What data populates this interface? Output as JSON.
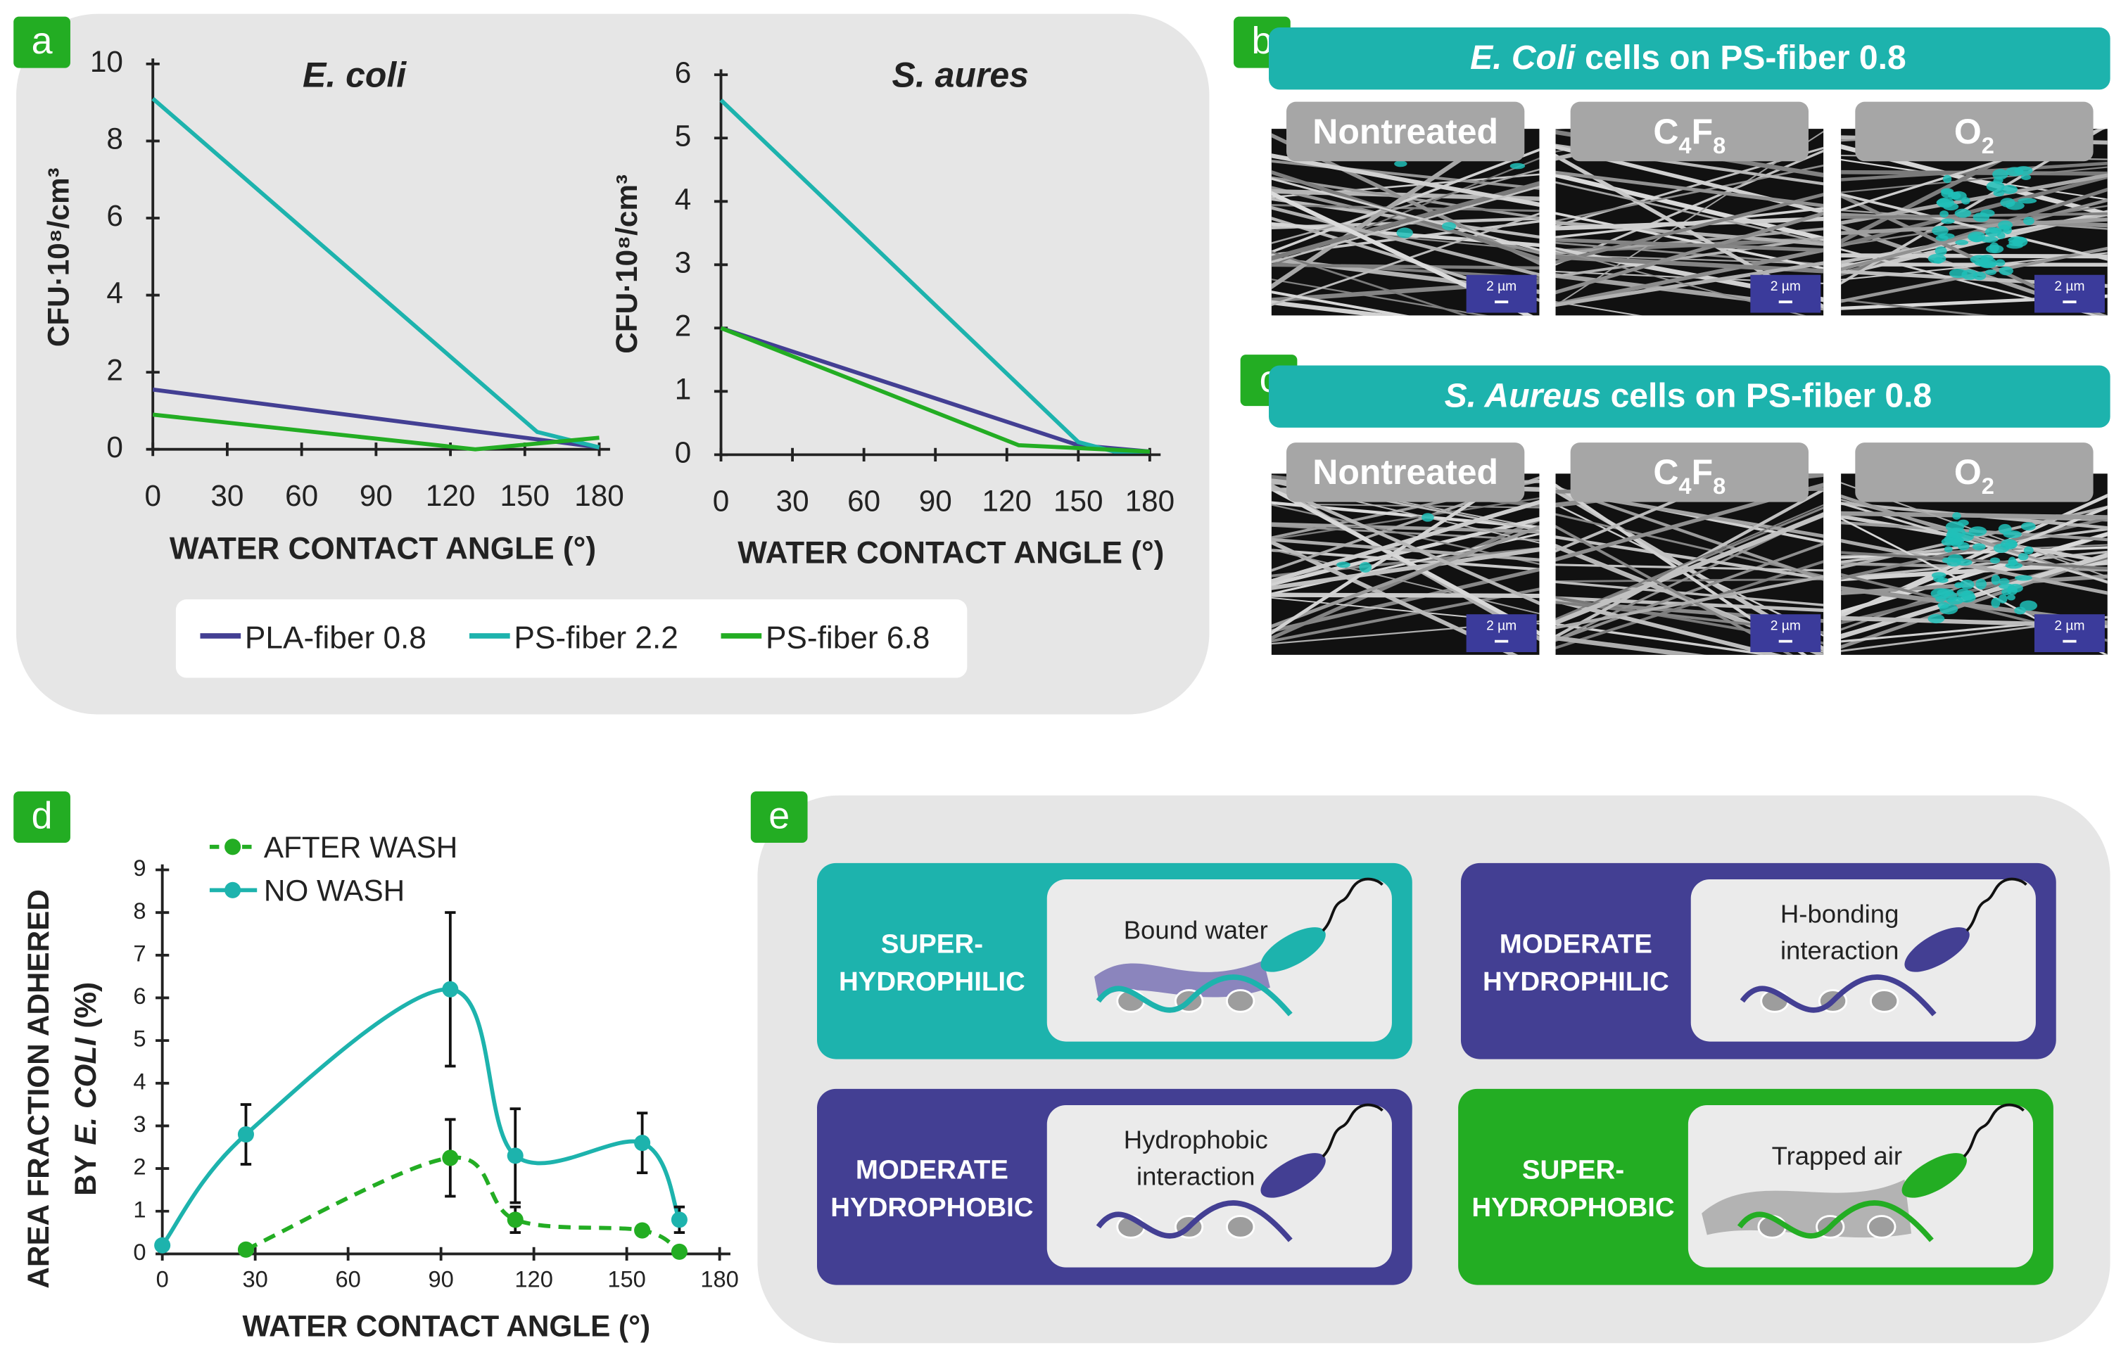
{
  "chart_data": [
    {
      "type": "line",
      "title": "E. coli",
      "xlabel": "WATER CONTACT ANGLE (°)",
      "ylabel": "CFU·10⁸/cm³",
      "xlim": [
        0,
        180
      ],
      "xticks": [
        0,
        30,
        60,
        90,
        120,
        150,
        180
      ],
      "ylim": [
        0,
        10
      ],
      "yticks": [
        0,
        2,
        4,
        6,
        8,
        10
      ],
      "series": [
        {
          "name": "PLA-fiber 0.8",
          "color": "#433f93",
          "x": [
            0,
            180
          ],
          "values": [
            1.55,
            0.05
          ]
        },
        {
          "name": "PS-fiber 2.2",
          "color": "#1db3ad",
          "x": [
            0,
            155,
            180
          ],
          "values": [
            9.1,
            0.45,
            0.05
          ]
        },
        {
          "name": "PS-fiber 6.8",
          "color": "#23ad23",
          "x": [
            0,
            130,
            180
          ],
          "values": [
            0.9,
            0,
            0.3
          ]
        }
      ]
    },
    {
      "type": "line",
      "title": "S. aures",
      "xlabel": "WATER CONTACT ANGLE (°)",
      "ylabel": "CFU·10⁸/cm³",
      "xlim": [
        0,
        180
      ],
      "xticks": [
        0,
        30,
        60,
        90,
        120,
        150,
        180
      ],
      "ylim": [
        0,
        6
      ],
      "yticks": [
        0,
        1,
        2,
        3,
        4,
        5,
        6
      ],
      "series": [
        {
          "color": "#433f93",
          "x": [
            0,
            150,
            180
          ],
          "values": [
            2,
            0.15,
            0.05
          ]
        },
        {
          "color": "#1db3ad",
          "x": [
            0,
            150,
            165,
            180
          ],
          "values": [
            5.6,
            0.2,
            0.05,
            0.05
          ]
        },
        {
          "color": "#23ad23",
          "x": [
            0,
            125,
            180
          ],
          "values": [
            2,
            0.15,
            0.05
          ]
        }
      ]
    },
    {
      "type": "smooth-line",
      "xlabel": "WATER CONTACT ANGLE (°)",
      "ylabel": {
        "line1": "AREA FRACTION ADHERED",
        "line2_prefix": "BY",
        "line2_italic": "E. COLI",
        "line2_suffix": "(%)"
      },
      "xlim": [
        0,
        180
      ],
      "xticks": [
        0,
        30,
        60,
        90,
        120,
        150,
        180
      ],
      "ylim": [
        0,
        9
      ],
      "yticks": [
        0,
        1,
        2,
        3,
        4,
        5,
        6,
        7,
        8,
        9
      ],
      "series": [
        {
          "name": "AFTER WASH",
          "color": "#23ad23",
          "dash": true,
          "x": [
            27,
            93,
            114,
            155,
            167
          ],
          "values": [
            0.1,
            2.25,
            0.8,
            0.55,
            0.05
          ],
          "errors": [
            0,
            0.9,
            0.3,
            0,
            0
          ]
        },
        {
          "name": "NO WASH",
          "color": "#1db3ad",
          "dash": false,
          "x": [
            0,
            27,
            93,
            114,
            155,
            167
          ],
          "values": [
            0.2,
            2.8,
            6.2,
            2.3,
            2.6,
            0.8
          ],
          "errors": [
            0,
            0.7,
            1.8,
            1.1,
            0.7,
            0.3
          ]
        }
      ]
    }
  ],
  "panel_labels": [
    "a",
    "b",
    "c",
    "d",
    "e"
  ],
  "micrographs": [
    {
      "header": {
        "italic": "E. Coli",
        "rest": "cells on PS-fiber 0.8"
      }
    },
    {
      "header": {
        "italic": "S. Aureus",
        "rest": "cells on PS-fiber 0.8"
      }
    }
  ],
  "tabs": [
    [
      {
        "text": "Nontreated"
      }
    ],
    [
      {
        "text": "C"
      },
      {
        "text": "4",
        "sub": true
      },
      {
        "text": "F"
      },
      {
        "text": "8",
        "sub": true
      }
    ],
    [
      {
        "text": "O"
      },
      {
        "text": "2",
        "sub": true
      }
    ]
  ],
  "scale_bar": "2 µm",
  "mechanisms": [
    {
      "label": [
        "SUPER-",
        "HYDROPHILIC"
      ],
      "note": [
        "Bound water"
      ],
      "color": "#1db3ad"
    },
    {
      "label": [
        "MODERATE",
        "HYDROPHILIC"
      ],
      "note": [
        "H-bonding",
        "interaction"
      ],
      "color": "#433f93"
    },
    {
      "label": [
        "MODERATE",
        "HYDROPHOBIC"
      ],
      "note": [
        "Hydrophobic",
        "interaction"
      ],
      "color": "#433f93"
    },
    {
      "label": [
        "SUPER-",
        "HYDROPHOBIC"
      ],
      "note": [
        "Trapped air"
      ],
      "color": "#23ad23"
    }
  ]
}
